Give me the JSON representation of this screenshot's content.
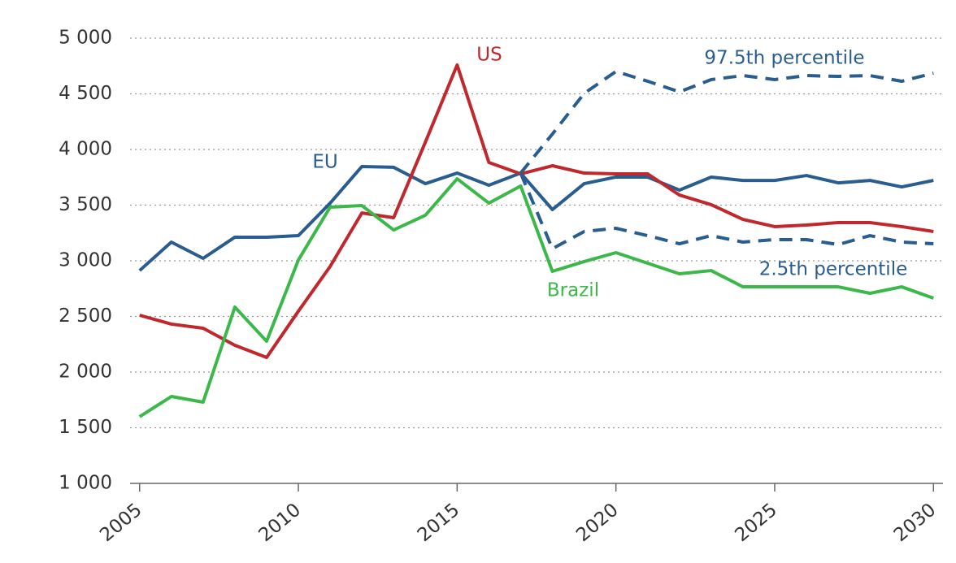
{
  "chart_data": {
    "type": "line",
    "x": [
      2005,
      2006,
      2007,
      2008,
      2009,
      2010,
      2011,
      2012,
      2013,
      2014,
      2015,
      2016,
      2017,
      2018,
      2019,
      2020,
      2021,
      2022,
      2023,
      2024,
      2025,
      2026,
      2027,
      2028,
      2029,
      2030
    ],
    "series": [
      {
        "name": "EU",
        "color": "#2a5d8f",
        "dash": false,
        "values": [
          2912,
          3168,
          3022,
          3212,
          3212,
          3226,
          3518,
          3847,
          3840,
          3693,
          3788,
          3679,
          3788,
          3460,
          3693,
          3752,
          3752,
          3635,
          3752,
          3722,
          3722,
          3766,
          3700,
          3722,
          3664,
          3722
        ]
      },
      {
        "name": "US",
        "color": "#c0282d",
        "dash": false,
        "values": [
          2511,
          2431,
          2394,
          2241,
          2131,
          2547,
          2949,
          3430,
          3387,
          4066,
          4759,
          3883,
          3781,
          3854,
          3788,
          3781,
          3781,
          3591,
          3504,
          3372,
          3307,
          3321,
          3343,
          3343,
          3307,
          3263
        ]
      },
      {
        "name": "Brazil",
        "color": "#3cb84a",
        "dash": false,
        "values": [
          1599,
          1781,
          1730,
          2584,
          2277,
          3007,
          3482,
          3496,
          3277,
          3409,
          3737,
          3518,
          3672,
          2905,
          2993,
          3073,
          2978,
          2883,
          2912,
          2766,
          2766,
          2766,
          2766,
          2708,
          2766,
          2664
        ]
      },
      {
        "name": "97.5th percentile",
        "color": "#2a5d8f",
        "dash": true,
        "values": [
          null,
          null,
          null,
          null,
          null,
          null,
          null,
          null,
          null,
          null,
          null,
          null,
          3788,
          4139,
          4504,
          4701,
          4613,
          4518,
          4628,
          4664,
          4628,
          4664,
          4657,
          4664,
          4613,
          4686
        ]
      },
      {
        "name": "2.5th percentile",
        "color": "#2a5d8f",
        "dash": true,
        "values": [
          null,
          null,
          null,
          null,
          null,
          null,
          null,
          null,
          null,
          null,
          null,
          null,
          3788,
          3109,
          3263,
          3292,
          3226,
          3153,
          3226,
          3168,
          3190,
          3190,
          3146,
          3226,
          3168,
          3153
        ]
      }
    ],
    "xlim": [
      2004.7,
      2030.3
    ],
    "xticks": [
      2005,
      2010,
      2015,
      2020,
      2025,
      2030
    ],
    "ylim": [
      1000,
      5000
    ],
    "yticks": [
      {
        "value": 1000,
        "label": "1 000"
      },
      {
        "value": 1500,
        "label": "1 500"
      },
      {
        "value": 2000,
        "label": "2 000"
      },
      {
        "value": 2500,
        "label": "2 500"
      },
      {
        "value": 3000,
        "label": "3 000"
      },
      {
        "value": 3500,
        "label": "3 500"
      },
      {
        "value": 4000,
        "label": "4 000"
      },
      {
        "value": 4500,
        "label": "4 500"
      },
      {
        "value": 5000,
        "label": "5 000"
      }
    ],
    "grid": true
  }
}
